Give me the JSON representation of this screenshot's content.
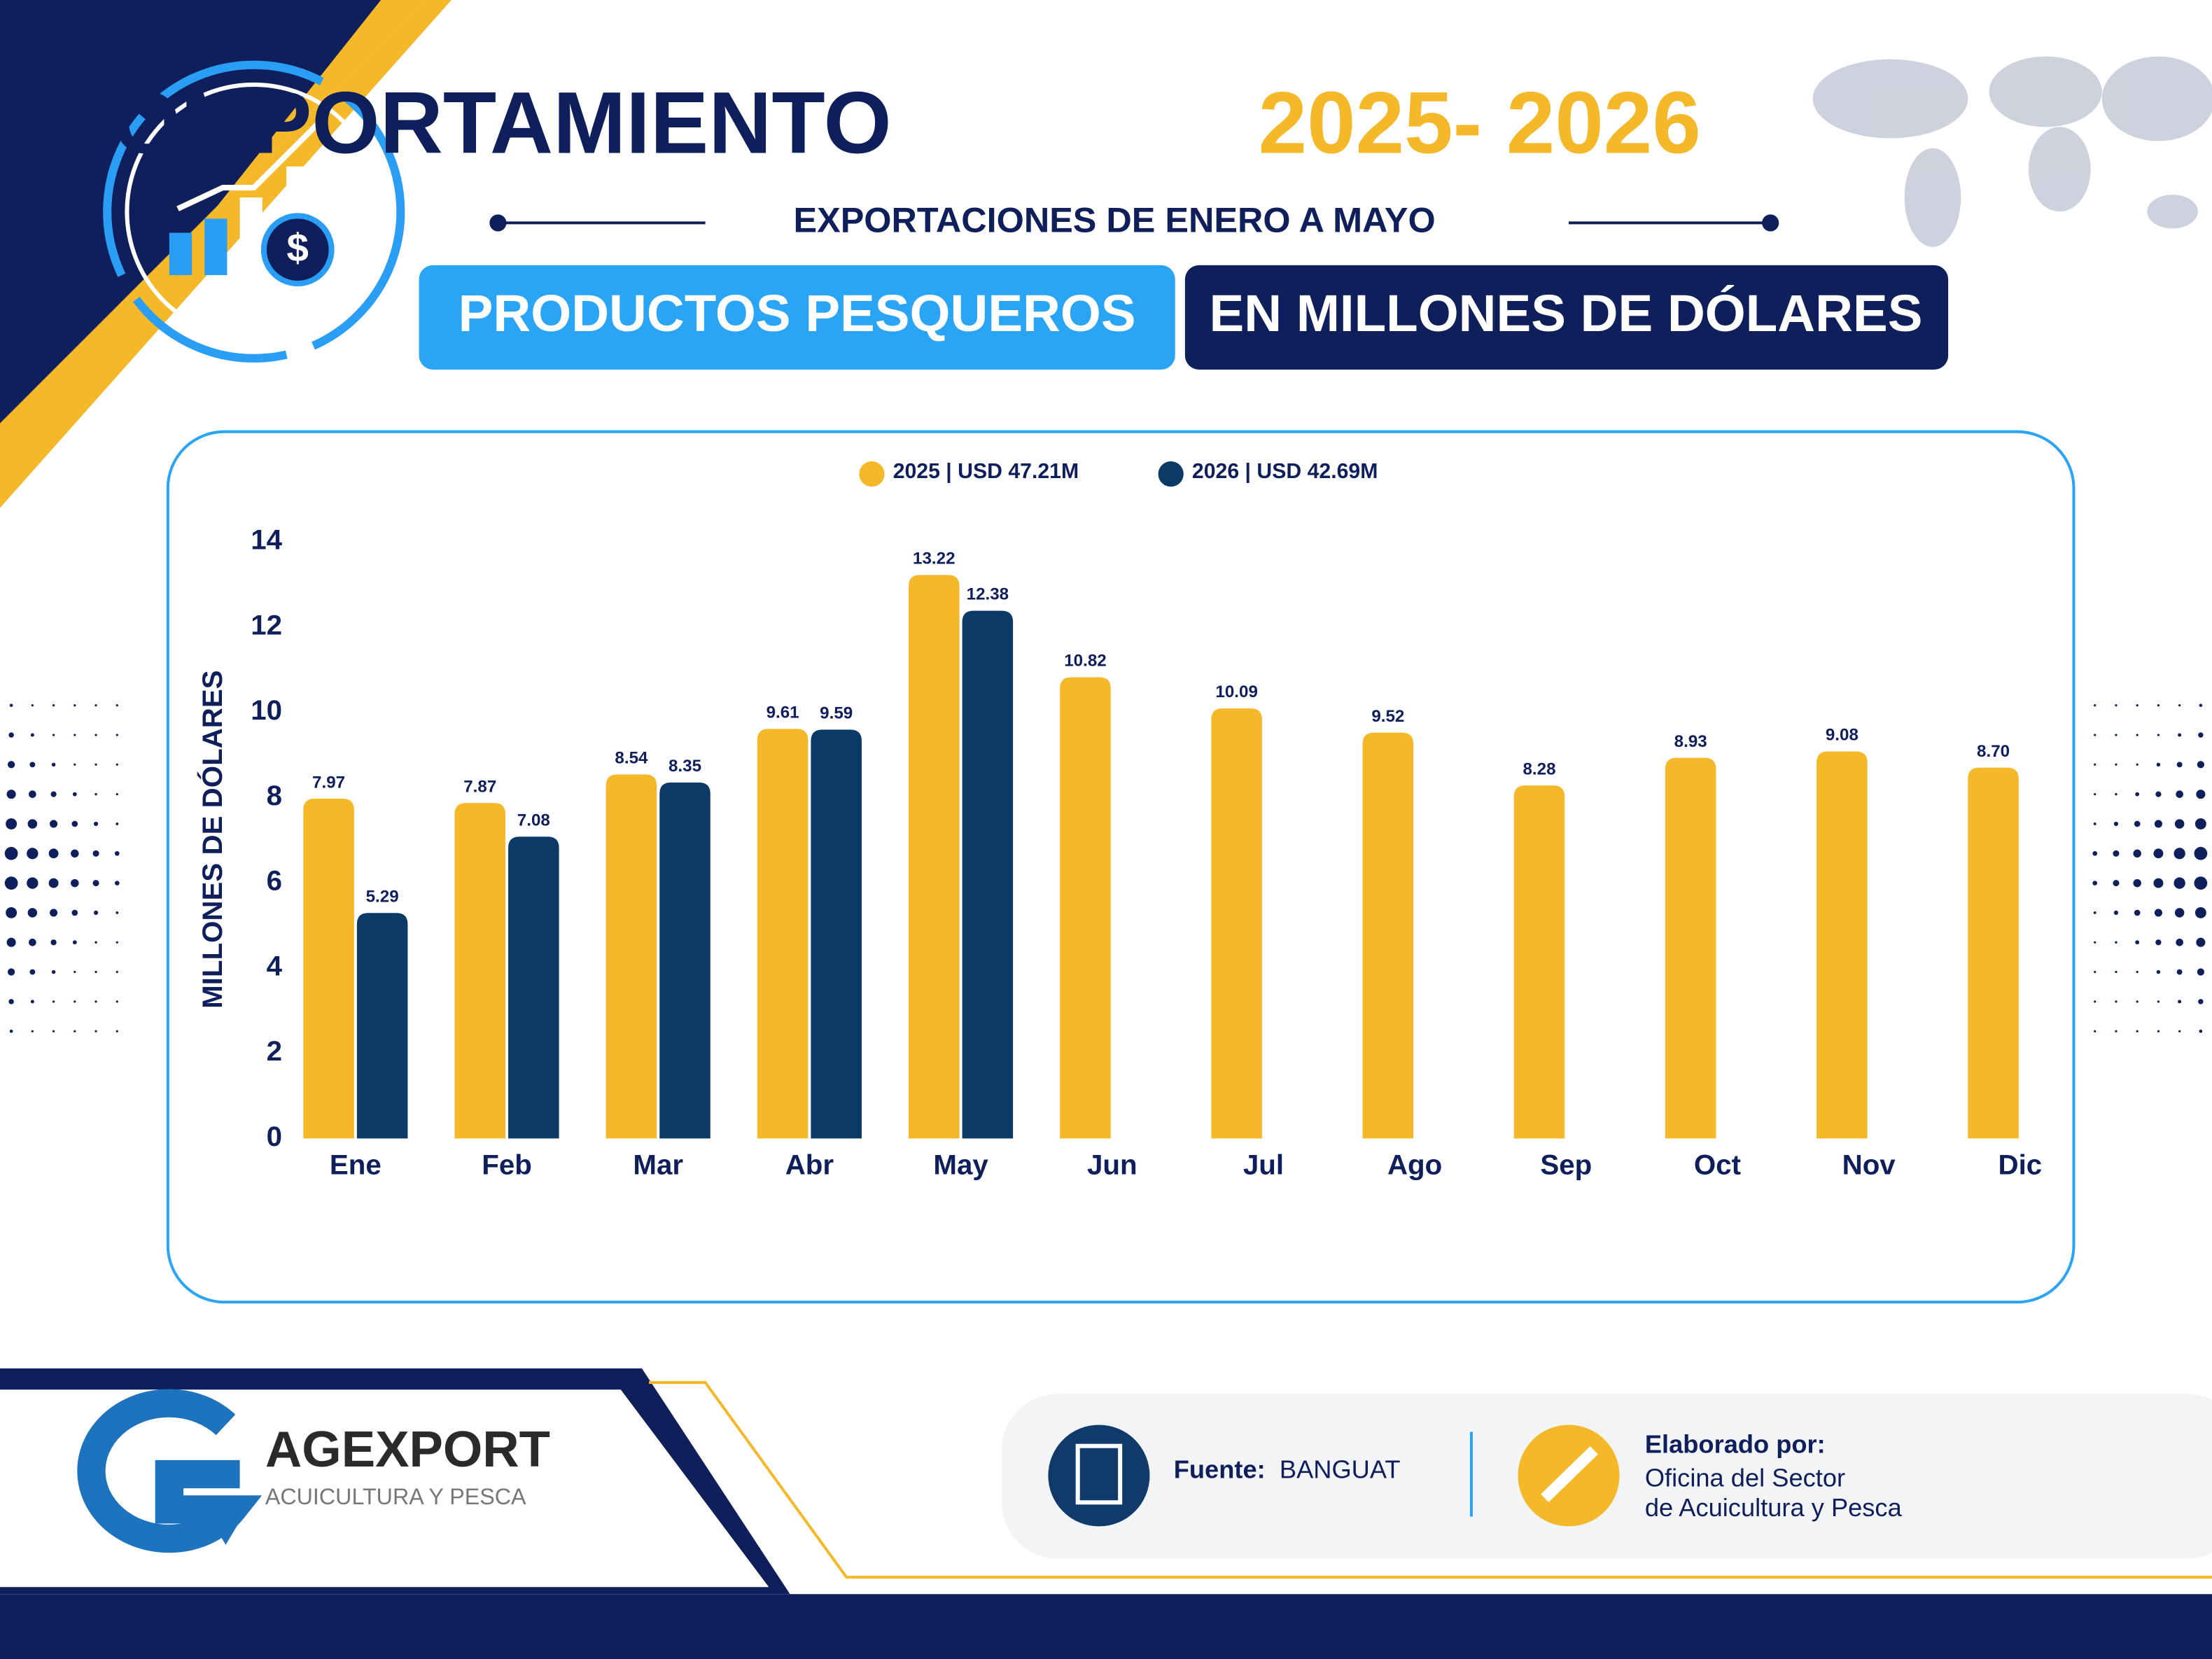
{
  "header": {
    "title": "COMPORTAMIENTO",
    "title_years": "2025- 2026",
    "subtitle": "EXPORTACIONES DE ENERO A MAYO",
    "badges": [
      "PRODUCTOS PESQUEROS",
      "EN MILLONES DE DÓLARES"
    ]
  },
  "chart_data": {
    "type": "bar",
    "y_label": "MILLONES DE DÓLARES",
    "categories": [
      "Ene",
      "Feb",
      "Mar",
      "Abr",
      "May",
      "Jun",
      "Jul",
      "Ago",
      "Sep",
      "Oct",
      "Nov",
      "Dic"
    ],
    "series": [
      {
        "name": "2025 | USD 47.21M",
        "color": "#f5b829",
        "values": [
          7.97,
          7.87,
          8.54,
          9.61,
          13.22,
          10.82,
          10.09,
          9.52,
          8.28,
          8.93,
          9.08,
          8.7
        ],
        "value_labels": [
          "7.97",
          "7.87",
          "8.54",
          "9.61",
          "13.22",
          "10.82",
          "10.09",
          "9.52",
          "8.28",
          "8.93",
          "9.08",
          "8.70"
        ]
      },
      {
        "name": "2026 | USD 42.69M",
        "color": "#0b3a66",
        "values": [
          5.29,
          7.08,
          8.35,
          9.59,
          12.38,
          null,
          null,
          null,
          null,
          null,
          null,
          null
        ],
        "value_labels": [
          "5.29",
          "7.08",
          "8.35",
          "9.59",
          "12.38",
          null,
          null,
          null,
          null,
          null,
          null,
          null
        ]
      }
    ],
    "ylim": [
      0,
      14
    ],
    "yticks": [
      0,
      2,
      4,
      6,
      8,
      10,
      12,
      14
    ],
    "grid": false,
    "legend": "top"
  },
  "footer": {
    "brand": "AGEXPORT",
    "brand_sub": "ACUICULTURA Y PESCA",
    "source_label": "Fuente:",
    "source": "BANGUAT",
    "author_label": "Elaborado por:",
    "author_lines": [
      "Oficina del Sector",
      "de Acuicultura y Pesca"
    ]
  }
}
